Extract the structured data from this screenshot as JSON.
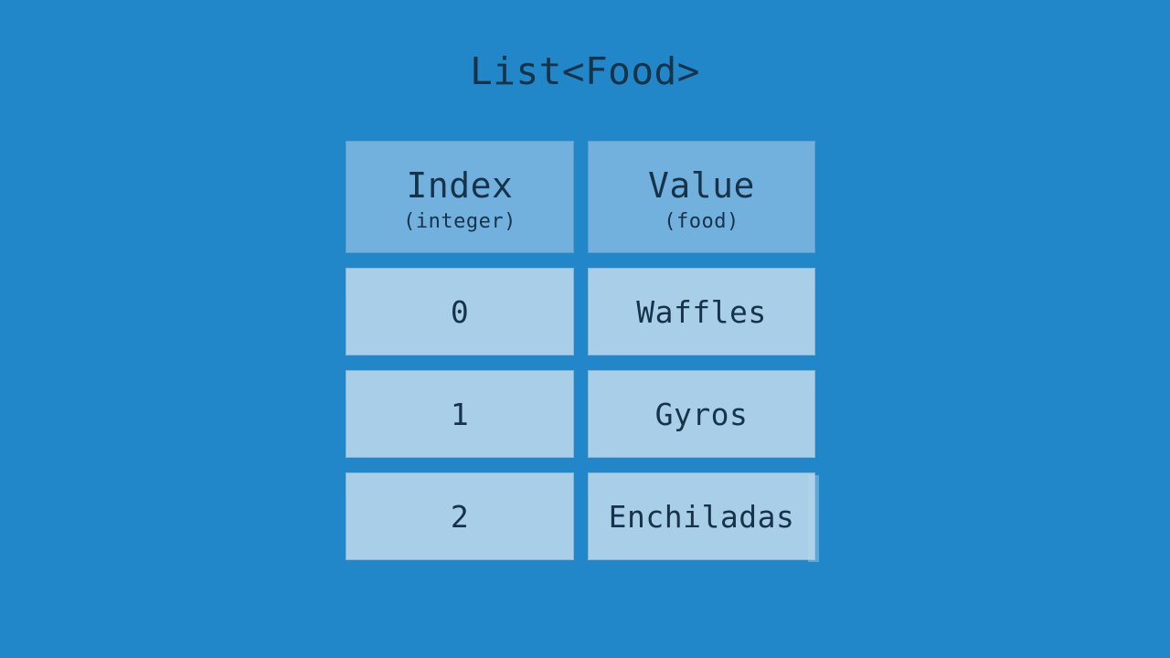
{
  "title": "List<Food>",
  "table": {
    "columns": [
      {
        "header": "Index",
        "subheader": "(integer)"
      },
      {
        "header": "Value",
        "subheader": "(food)"
      }
    ],
    "rows": [
      {
        "index": "0",
        "value": "Waffles"
      },
      {
        "index": "1",
        "value": "Gyros"
      },
      {
        "index": "2",
        "value": "Enchiladas"
      }
    ]
  },
  "colors": {
    "background": "#2287c8",
    "header_fill": "#72b1de",
    "cell_fill": "#a9cfe8",
    "text": "#16334a"
  }
}
